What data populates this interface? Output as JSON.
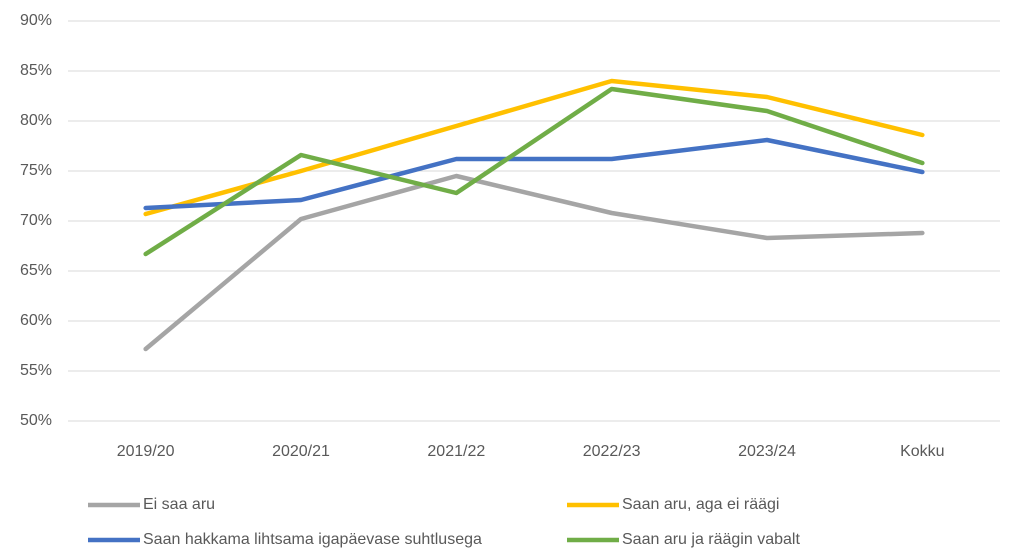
{
  "chart_data": {
    "type": "line",
    "categories": [
      "2019/20",
      "2020/21",
      "2021/22",
      "2022/23",
      "2023/24",
      "Kokku"
    ],
    "series": [
      {
        "name": "Ei saa aru",
        "color": "#a5a5a5",
        "values": [
          57.2,
          70.2,
          74.5,
          70.8,
          68.3,
          68.8
        ]
      },
      {
        "name": "Saan aru, aga ei räägi",
        "color": "#ffc000",
        "values": [
          70.7,
          75.0,
          79.5,
          84.0,
          82.4,
          78.6
        ]
      },
      {
        "name": "Saan hakkama lihtsama igapäevase suhtlusega",
        "color": "#4472c4",
        "values": [
          71.3,
          72.1,
          76.2,
          76.2,
          78.1,
          74.9
        ]
      },
      {
        "name": "Saan aru ja räägin vabalt",
        "color": "#70ad47",
        "values": [
          66.7,
          76.6,
          72.8,
          83.2,
          81.0,
          75.8
        ]
      }
    ],
    "ylim": [
      50,
      90
    ],
    "yticks": [
      {
        "value": 50,
        "label": "50%"
      },
      {
        "value": 55,
        "label": "55%"
      },
      {
        "value": 60,
        "label": "60%"
      },
      {
        "value": 65,
        "label": "65%"
      },
      {
        "value": 70,
        "label": "70%"
      },
      {
        "value": 75,
        "label": "75%"
      },
      {
        "value": 80,
        "label": "80%"
      },
      {
        "value": 85,
        "label": "85%"
      },
      {
        "value": 90,
        "label": "90%"
      }
    ],
    "grid": true,
    "legend": "bottom"
  }
}
